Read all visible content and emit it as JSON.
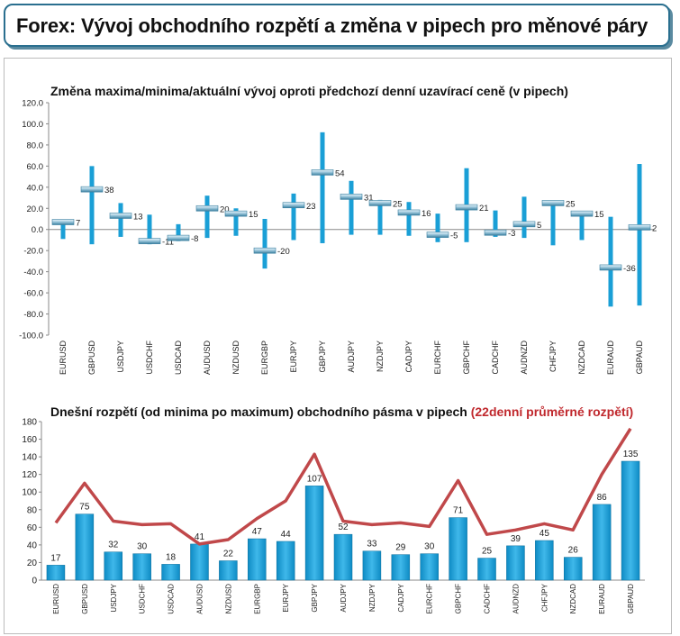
{
  "header": {
    "title": "Forex: Vývoj obchodního rozpětí a změna v pipech pro měnové páry"
  },
  "colors": {
    "bar": "#1a9fd6",
    "bar_dark": "#0d79a8",
    "line": "#c0484a",
    "accent_text": "#c0282d",
    "header_border": "#2a6f8f"
  },
  "chart_data": [
    {
      "type": "bar",
      "title": "Změna maxima/minima/aktuální vývoj oproti předchozí denní uzavírací ceně (v pipech)",
      "ylim": [
        -100,
        120
      ],
      "yticks": [
        "-100.0",
        "-80.0",
        "-60.0",
        "-40.0",
        "-20.0",
        "0.0",
        "20.0",
        "40.0",
        "60.0",
        "80.0",
        "100.0",
        "120.0"
      ],
      "categories": [
        "EURUSD",
        "GBPUSD",
        "USDJPY",
        "USDCHF",
        "USDCAD",
        "AUDUSD",
        "NZDUSD",
        "EURGBP",
        "EURJPY",
        "GBPJPY",
        "AUDJPY",
        "NZDJPY",
        "CADJPY",
        "EURCHF",
        "GBPCHF",
        "CADCHF",
        "AUDNZD",
        "CHFJPY",
        "NZDCAD",
        "EURAUD",
        "GBPAUD"
      ],
      "series": [
        {
          "values_high": [
            7,
            60,
            25,
            14,
            5,
            32,
            20,
            10,
            34,
            92,
            46,
            28,
            26,
            15,
            58,
            18,
            31,
            27,
            17,
            12,
            62
          ]
        },
        {
          "values_low": [
            -9,
            -14,
            -7,
            -14,
            -11,
            -8,
            -6,
            -37,
            -10,
            -13,
            -5,
            -5,
            -6,
            -12,
            -12,
            -7,
            -8,
            -15,
            -10,
            -73,
            -72
          ]
        },
        {
          "values_current": [
            7,
            38,
            13,
            -11,
            -8,
            20,
            15,
            -20,
            23,
            54,
            31,
            25,
            16,
            -5,
            21,
            -3,
            5,
            25,
            15,
            -36,
            2
          ]
        }
      ],
      "labels": [
        "7",
        "38",
        "13",
        "-11",
        "-8",
        "20",
        "15",
        "-20",
        "23",
        "54",
        "31",
        "25",
        "16",
        "-5",
        "21",
        "-3",
        "5",
        "25",
        "15",
        "-36",
        "2"
      ]
    },
    {
      "type": "bar",
      "title": "Dnešní rozpětí (od minima po maximum) obchodního pásma v pipech",
      "title_accent": "(22denní průměrné rozpětí)",
      "ylim": [
        0,
        180
      ],
      "yticks": [
        "0",
        "20",
        "40",
        "60",
        "80",
        "100",
        "120",
        "140",
        "160",
        "180"
      ],
      "categories": [
        "EURUSD",
        "GBPUSD",
        "USDJPY",
        "USDCHF",
        "USDCAD",
        "AUDUSD",
        "NZDUSD",
        "EURGBP",
        "EURJPY",
        "GBPJPY",
        "AUDJPY",
        "NZDJPY",
        "CADJPY",
        "EURCHF",
        "GBPCHF",
        "CADCHF",
        "AUDNZD",
        "CHFJPY",
        "NZDCAD",
        "EURAUD",
        "GBPAUD"
      ],
      "values": [
        17,
        75,
        32,
        30,
        18,
        41,
        22,
        47,
        44,
        107,
        52,
        33,
        29,
        30,
        71,
        25,
        39,
        45,
        26,
        86,
        135
      ],
      "labels": [
        "17",
        "75",
        "32",
        "30",
        "18",
        "41",
        "22",
        "47",
        "44",
        "107",
        "52",
        "33",
        "29",
        "30",
        "71",
        "25",
        "39",
        "45",
        "26",
        "86",
        "135"
      ],
      "avg_range": [
        65,
        110,
        67,
        63,
        64,
        41,
        46,
        70,
        90,
        143,
        67,
        63,
        65,
        61,
        113,
        52,
        57,
        64,
        57,
        120,
        172
      ]
    }
  ]
}
